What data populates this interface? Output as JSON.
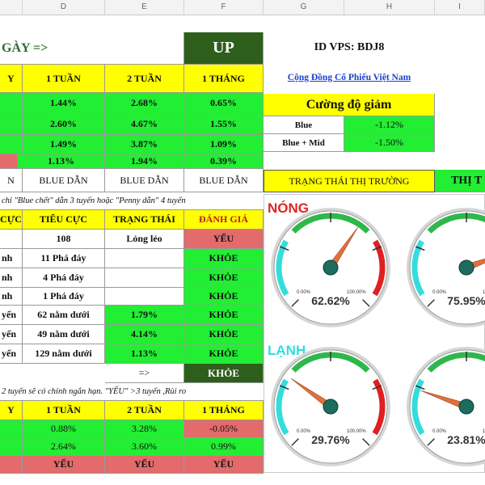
{
  "columns": [
    "D",
    "E",
    "F",
    "G",
    "H",
    "I"
  ],
  "top": {
    "left_title": "GÀY =>",
    "up_label": "UP",
    "id_vps": "ID VPS: BDJ8",
    "community_link": "Cộng Đồng Cổ Phiếu Việt Nam",
    "strength_title": "Cường độ giảm",
    "strength_rows": [
      {
        "label": "Blue",
        "value": "-1.12%"
      },
      {
        "label": "Blue + Mid",
        "value": "-1.50%"
      }
    ],
    "headers": [
      "Y",
      "1 TUẦN",
      "2 TUẦN",
      "1 THÁNG"
    ],
    "rows": [
      [
        "",
        "1.44%",
        "2.68%",
        "0.65%"
      ],
      [
        "",
        "2.60%",
        "4.67%",
        "1.55%"
      ],
      [
        "",
        "1.49%",
        "3.87%",
        "1.09%"
      ],
      [
        "",
        "1.13%",
        "1.94%",
        "0.39%"
      ]
    ],
    "lead_row": [
      "N",
      "BLUE DẪN",
      "BLUE DẪN",
      "BLUE DẪN"
    ],
    "market_state_label": "TRẠNG THÁI THỊ TRƯỜNG",
    "market_state_value": "THỊ T"
  },
  "middle": {
    "note": "chỉ \"Blue chết\" dẫn 3 tuyến hoặc \"Penny dẫn\" 4 tuyến",
    "headers": [
      "CỰC",
      "TIÊU CỰC",
      "TRẠNG THÁI",
      "ĐÁNH GIÁ"
    ],
    "rows": [
      [
        "",
        "108",
        "Lỏng lẻo",
        "YẾU"
      ],
      [
        "nh",
        "11 Phá đáy",
        "",
        "KHỎE"
      ],
      [
        "nh",
        "4 Phá đáy",
        "",
        "KHỎE"
      ],
      [
        "nh",
        "1 Phá đáy",
        "",
        "KHỎE"
      ],
      [
        "yến",
        "62 nằm dưới",
        "1.79%",
        "KHỎE"
      ],
      [
        "yến",
        "49 nằm dưới",
        "4.14%",
        "KHỎE"
      ],
      [
        "yến",
        "129 nằm dưới",
        "1.13%",
        "KHỎE"
      ]
    ],
    "arrow": "=>",
    "summary": "KHỎE"
  },
  "bottom": {
    "note": "2 tuyến sẽ có chỉnh ngắn hạn. \"YẾU\" >3 tuyến ,Rủi ro",
    "headers": [
      "Y",
      "1 TUẦN",
      "2 TUẦN",
      "1 THÁNG"
    ],
    "rows": [
      [
        "",
        "0.88%",
        "3.28%",
        "-0.05%"
      ],
      [
        "",
        "2.64%",
        "3.60%",
        "0.99%"
      ]
    ],
    "status_row": [
      "",
      "YẾU",
      "YẾU",
      "YẾU"
    ]
  },
  "gauges": {
    "hot_label": "NÓNG",
    "cold_label": "LẠNH",
    "min_label": "0.00%",
    "max_label": "100.00%",
    "items": [
      {
        "value_text": "62.62%",
        "value": 62.62
      },
      {
        "value_text": "75.95%",
        "value": 75.95
      },
      {
        "value_text": "29.76%",
        "value": 29.76
      },
      {
        "value_text": "23.81%",
        "value": 23.81
      }
    ],
    "colors": {
      "needle": "#e0703a",
      "hub": "#1e6b60",
      "green": "#2fb84a",
      "red": "#e02020",
      "cyan": "#33dddd"
    }
  }
}
